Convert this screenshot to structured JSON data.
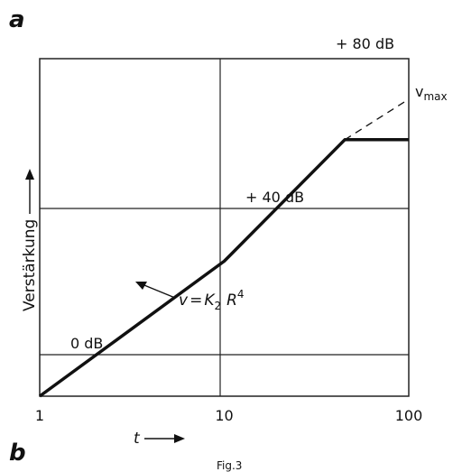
{
  "panel_labels": {
    "top": "a",
    "bottom": "b"
  },
  "caption": "Fig.3",
  "chart_data": {
    "type": "line",
    "xscale": "log",
    "xlim": [
      1,
      100
    ],
    "ylim": [
      0,
      100
    ],
    "x_ticks": [
      "1",
      "10",
      "100"
    ],
    "xlabel": "t",
    "ylabel": "Verstärkung",
    "grid": true,
    "series": [
      {
        "points": [
          [
            1,
            0
          ],
          [
            10,
            40
          ],
          [
            45,
            76
          ],
          [
            100,
            76
          ]
        ]
      },
      {
        "style": "dashed",
        "points": [
          [
            45,
            76
          ],
          [
            100,
            88
          ]
        ]
      }
    ],
    "annotations": {
      "level_0": "0 dB",
      "level_40": "+ 40 dB",
      "level_80": "+ 80 dB",
      "vmax": {
        "base": "v",
        "sub": "max"
      },
      "formula": {
        "v": "v",
        "eq": "=",
        "k": "K",
        "k_sub": "2",
        "r": "R",
        "r_sup": "4"
      }
    }
  }
}
